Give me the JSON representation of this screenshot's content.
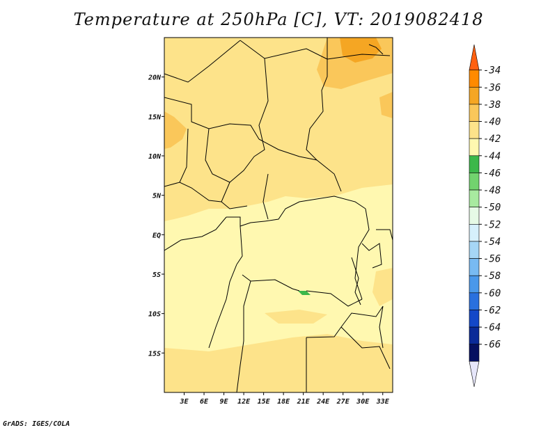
{
  "title": "Temperature at 250hPa [C], VT: 2019082418",
  "credit": "GrADS: IGES/COLA",
  "map": {
    "lon_range": [
      0,
      34.5
    ],
    "lat_range": [
      -20,
      25
    ],
    "lat_ticks": [
      {
        "value": 20,
        "label": "20N"
      },
      {
        "value": 15,
        "label": "15N"
      },
      {
        "value": 10,
        "label": "10N"
      },
      {
        "value": 5,
        "label": "5N"
      },
      {
        "value": 0,
        "label": "EQ"
      },
      {
        "value": -5,
        "label": "5S"
      },
      {
        "value": -10,
        "label": "10S"
      },
      {
        "value": -15,
        "label": "15S"
      }
    ],
    "lon_ticks": [
      {
        "value": 3,
        "label": "3E"
      },
      {
        "value": 6,
        "label": "6E"
      },
      {
        "value": 9,
        "label": "9E"
      },
      {
        "value": 12,
        "label": "12E"
      },
      {
        "value": 15,
        "label": "15E"
      },
      {
        "value": 18,
        "label": "18E"
      },
      {
        "value": 21,
        "label": "21E"
      },
      {
        "value": 24,
        "label": "24E"
      },
      {
        "value": 27,
        "label": "27E"
      },
      {
        "value": 30,
        "label": "30E"
      },
      {
        "value": 33,
        "label": "33E"
      }
    ],
    "colors": {
      "c36_38": "#f5a623",
      "c38_40": "#fac75a",
      "c40_42": "#fde38a",
      "c42_44": "#fff8b0",
      "c44_46": "#3cb84a",
      "border": "#000000"
    }
  },
  "colorbar": {
    "labels": [
      "-34",
      "-36",
      "-38",
      "-40",
      "-42",
      "-44",
      "-46",
      "-48",
      "-50",
      "-52",
      "-54",
      "-56",
      "-58",
      "-60",
      "-62",
      "-64",
      "-66"
    ],
    "colors": [
      "#ff6010",
      "#ff8a00",
      "#f5a623",
      "#fac75a",
      "#fde38a",
      "#fff8b0",
      "#3cb84a",
      "#72d36e",
      "#a8eaa0",
      "#e6fae6",
      "#d6f0fc",
      "#a6d6f6",
      "#78baf2",
      "#4a98ea",
      "#2a70de",
      "#1448c8",
      "#0a2a98",
      "#051060",
      "#e6e6fa"
    ]
  }
}
